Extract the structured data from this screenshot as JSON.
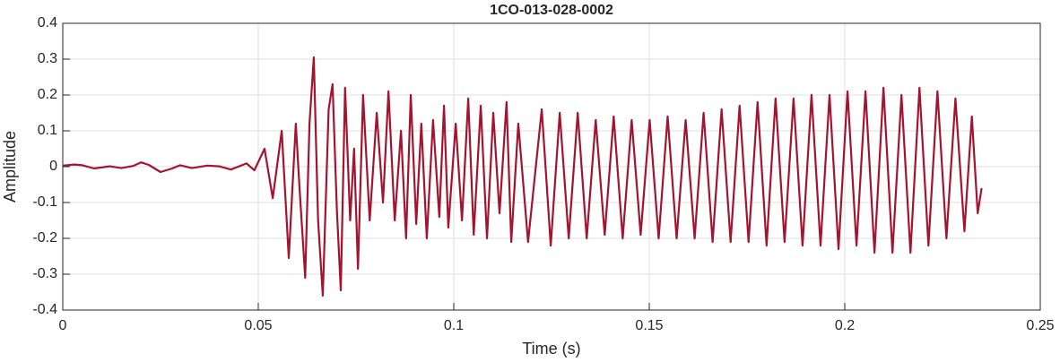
{
  "chart_data": {
    "type": "line",
    "title": "1CO-013-028-0002",
    "x_label": "Time (s)",
    "y_label": "Amplitude",
    "color": "#a2142f",
    "grid": true,
    "xlim": [
      0,
      0.25
    ],
    "xticks": [
      0,
      0.05,
      0.1,
      0.15,
      0.2,
      0.25
    ],
    "ylim": [
      -0.4,
      0.4
    ],
    "yticks": [
      -0.4,
      -0.3,
      -0.2,
      -0.1,
      0,
      0.1,
      0.2,
      0.3,
      0.4
    ],
    "x": [
      0,
      0.003,
      0.005,
      0.008,
      0.012,
      0.015,
      0.018,
      0.02,
      0.022,
      0.025,
      0.028,
      0.03,
      0.033,
      0.037,
      0.04,
      0.043,
      0.047,
      0.049,
      0.0516,
      0.0537,
      0.056,
      0.0578,
      0.0596,
      0.0605,
      0.062,
      0.0631,
      0.0642,
      0.0653,
      0.0665,
      0.068,
      0.069,
      0.0701,
      0.0711,
      0.0722,
      0.0735,
      0.0745,
      0.0755,
      0.0768,
      0.0785,
      0.0803,
      0.0819,
      0.0833,
      0.0849,
      0.0865,
      0.0878,
      0.089,
      0.0904,
      0.0917,
      0.0931,
      0.0947,
      0.0963,
      0.0975,
      0.0986,
      0.1005,
      0.1021,
      0.1037,
      0.1051,
      0.1069,
      0.1085,
      0.1101,
      0.1117,
      0.1135,
      0.1147,
      0.1165,
      0.119,
      0.1225,
      0.1248,
      0.1271,
      0.1294,
      0.1317,
      0.134,
      0.1363,
      0.1386,
      0.1409,
      0.1432,
      0.1455,
      0.1478,
      0.1501,
      0.1524,
      0.1547,
      0.157,
      0.1593,
      0.1616,
      0.1639,
      0.1662,
      0.1685,
      0.1708,
      0.1731,
      0.1754,
      0.1777,
      0.18,
      0.1823,
      0.1846,
      0.1869,
      0.1892,
      0.1915,
      0.1938,
      0.1961,
      0.1984,
      0.2007,
      0.203,
      0.2053,
      0.2076,
      0.2099,
      0.2122,
      0.2145,
      0.2168,
      0.2191,
      0.2214,
      0.2237,
      0.226,
      0.2283,
      0.2306,
      0.2325,
      0.234,
      0.235
    ],
    "values": [
      0.003,
      0.006,
      0.004,
      -0.005,
      0.001,
      -0.004,
      0.002,
      0.012,
      0.005,
      -0.015,
      -0.005,
      0.004,
      -0.004,
      0.003,
      0.001,
      -0.008,
      0.009,
      -0.01,
      0.05,
      -0.088,
      0.1,
      -0.255,
      0.12,
      -0.05,
      -0.31,
      0.12,
      0.305,
      -0.15,
      -0.36,
      0.16,
      0.23,
      -0.12,
      -0.345,
      0.22,
      -0.15,
      0.05,
      -0.285,
      0.2,
      -0.15,
      0.15,
      -0.1,
      0.21,
      -0.15,
      0.1,
      -0.2,
      0.2,
      -0.16,
      0.12,
      -0.2,
      0.13,
      -0.14,
      0.17,
      -0.17,
      0.12,
      -0.15,
      0.19,
      -0.19,
      0.17,
      -0.2,
      0.15,
      -0.13,
      0.18,
      -0.21,
      0.12,
      -0.21,
      0.16,
      -0.22,
      0.15,
      -0.2,
      0.15,
      -0.2,
      0.13,
      -0.19,
      0.14,
      -0.2,
      0.13,
      -0.19,
      0.13,
      -0.2,
      0.14,
      -0.2,
      0.13,
      -0.2,
      0.15,
      -0.21,
      0.16,
      -0.21,
      0.17,
      -0.21,
      0.18,
      -0.22,
      0.19,
      -0.21,
      0.19,
      -0.22,
      0.2,
      -0.22,
      0.2,
      -0.23,
      0.21,
      -0.22,
      0.21,
      -0.24,
      0.22,
      -0.24,
      0.2,
      -0.24,
      0.22,
      -0.22,
      0.21,
      -0.2,
      0.19,
      -0.18,
      0.14,
      -0.13,
      -0.06
    ]
  }
}
